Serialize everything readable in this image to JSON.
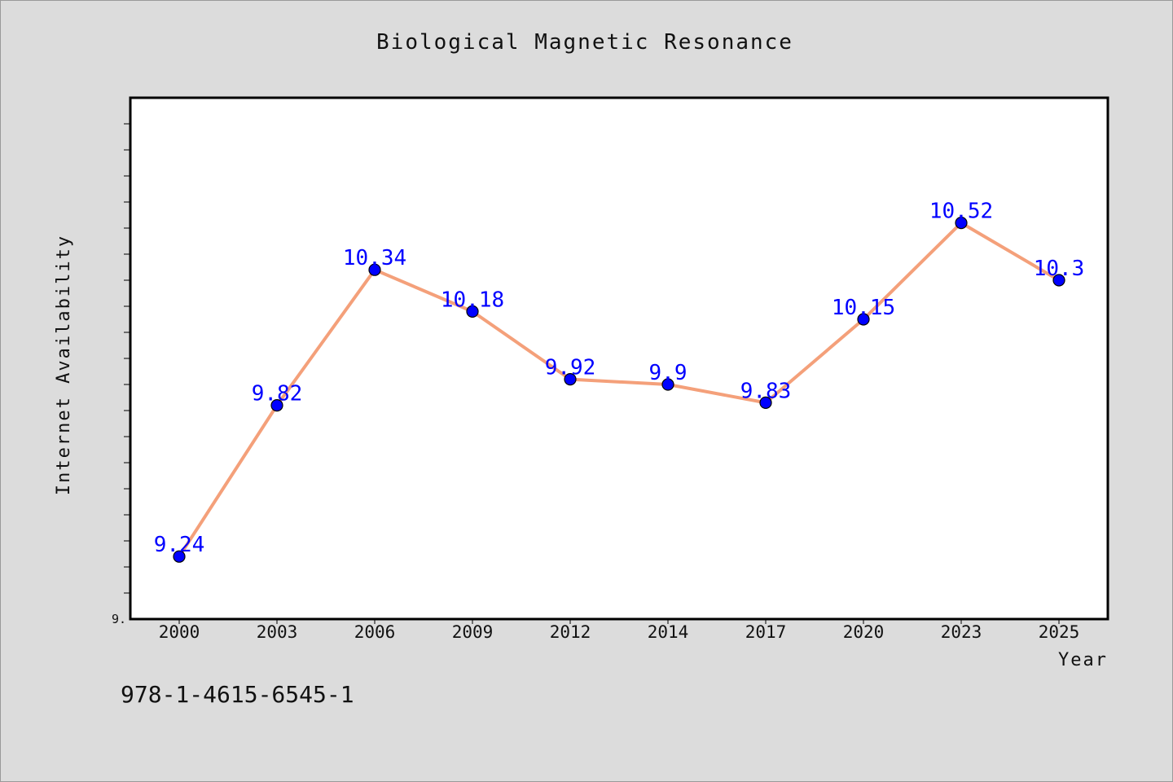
{
  "chart_data": {
    "type": "line",
    "title": "Biological Magnetic Resonance",
    "xlabel": "Year",
    "ylabel": "Internet Availability",
    "categories": [
      "2000",
      "2003",
      "2006",
      "2009",
      "2012",
      "2014",
      "2017",
      "2020",
      "2023",
      "2025"
    ],
    "series": [
      {
        "values": [
          9.24,
          9.82,
          10.34,
          10.18,
          9.92,
          9.9,
          9.83,
          10.15,
          10.52,
          10.3
        ],
        "data_labels": [
          "9.24",
          "9.82",
          "10.34",
          "10.18",
          "9.92",
          "9.9",
          "9.83",
          "10.15",
          "10.52",
          "10.3"
        ]
      }
    ],
    "y_tick_label": "9.",
    "ylim": [
      9.0,
      11.0
    ],
    "grid": false,
    "line_color": "#f4a07a",
    "marker_color": "#0000ff",
    "label_color": "#0000ff"
  },
  "footer": {
    "isbn": "978-1-4615-6545-1"
  }
}
